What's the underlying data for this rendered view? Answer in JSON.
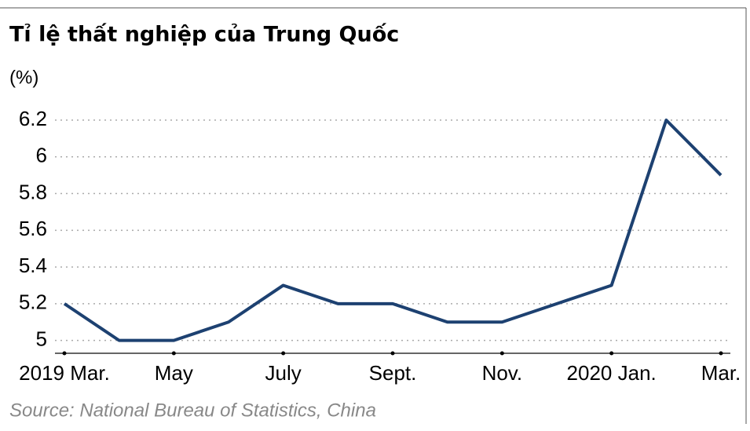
{
  "chart_data": {
    "type": "line",
    "title": "Tỉ lệ thất nghiệp của Trung Quốc",
    "ylabel": "(%)",
    "source": "Source: National Bureau of Statistics, China",
    "categories": [
      "2019 Mar.",
      null,
      "May",
      null,
      "July",
      null,
      "Sept.",
      null,
      "Nov.",
      null,
      "2020 Jan.",
      null,
      "Mar."
    ],
    "values": [
      5.2,
      5.0,
      5.0,
      5.1,
      5.3,
      5.2,
      5.2,
      5.1,
      5.1,
      5.2,
      5.3,
      6.2,
      5.9
    ],
    "color": "#1d4171",
    "ylim": [
      4.93,
      6.2
    ],
    "yticks": [
      5,
      5.2,
      5.4,
      5.6,
      5.8,
      6,
      6.2
    ],
    "grid": true
  }
}
